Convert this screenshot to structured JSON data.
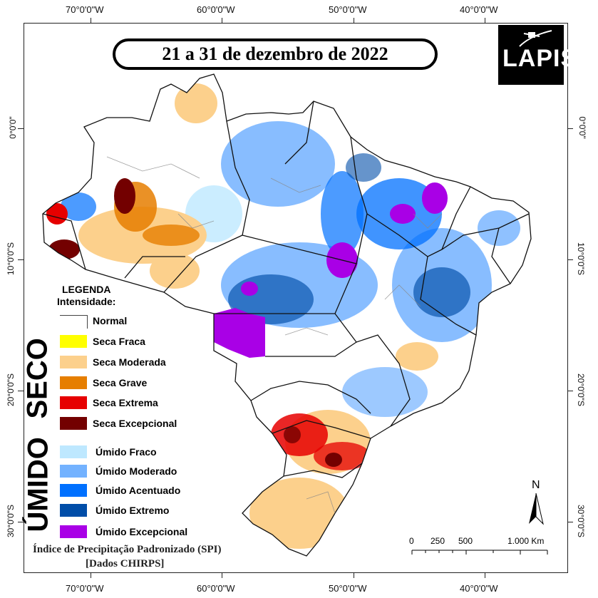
{
  "title": "21 a 31 de dezembro de 2022",
  "logo": {
    "text": "LAPIS"
  },
  "coords": {
    "top": [
      "70°0'0\"W",
      "60°0'0\"W",
      "50°0'0\"W",
      "40°0'0\"W"
    ],
    "bottom": [
      "70°0'0\"W",
      "60°0'0\"W",
      "50°0'0\"W",
      "40°0'0\"W"
    ],
    "left": [
      "0°0'0\"",
      "10°0'0\"S",
      "20°0'0\"S",
      "30°0'0\"S"
    ],
    "right": [
      "0°0'0\"",
      "10°0'0\"S",
      "20°0'0\"S",
      "30°0'0\"S"
    ]
  },
  "legend": {
    "heading": "LEGENDA",
    "subheading": "Intensidade:",
    "normal": {
      "label": "Normal",
      "color": "#ffffff"
    },
    "dry_group_label": "SECO",
    "wet_group_label": "ÚMIDO",
    "dry": [
      {
        "label": "Seca Fraca",
        "color": "#ffff00"
      },
      {
        "label": "Seca Moderada",
        "color": "#fcd08c"
      },
      {
        "label": "Seca Grave",
        "color": "#e67e00"
      },
      {
        "label": "Seca Extrema",
        "color": "#e60000"
      },
      {
        "label": "Seca Excepcional",
        "color": "#730000"
      }
    ],
    "wet": [
      {
        "label": "Úmido Fraco",
        "color": "#bee8ff"
      },
      {
        "label": "Úmido Moderado",
        "color": "#73b2ff"
      },
      {
        "label": "Úmido Acentuado",
        "color": "#0070ff"
      },
      {
        "label": "Úmido Extremo",
        "color": "#004da8"
      },
      {
        "label": "Úmido Excepcional",
        "color": "#a900e6"
      }
    ]
  },
  "footer": {
    "line1": "Índice de Precipitação Padronizado (SPI)",
    "line2": "[Dados CHIRPS]"
  },
  "scalebar": {
    "labels": [
      "0",
      "250",
      "500",
      "1.000 Km"
    ]
  },
  "north_arrow": {
    "label": "N"
  }
}
